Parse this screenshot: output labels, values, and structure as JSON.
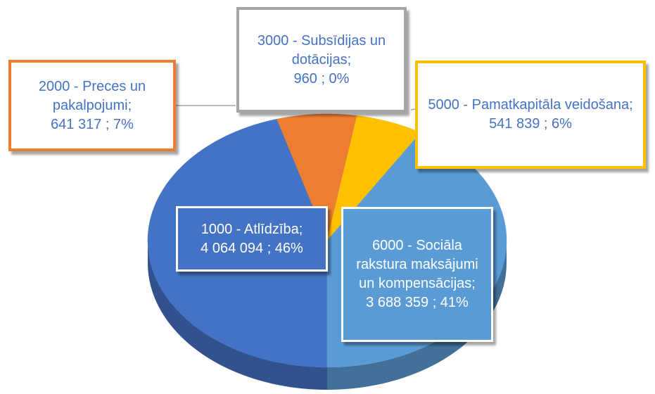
{
  "chart_data": {
    "type": "pie",
    "categories": [
      "1000 - Atlīdzība;",
      "2000 - Preces un pakalpojumi;",
      "3000 - Subsīdijas un dotācijas;",
      "5000 - Pamatkapitāla veidošana;",
      "6000 - Sociāla rakstura maksājumi un kompensācijas;"
    ],
    "values": [
      4064094,
      641317,
      960,
      541839,
      3688359
    ],
    "value_labels": [
      "4 064 094 ; 46%",
      "641 317 ; 7%",
      "960 ; 0%",
      "541 839 ; 6%",
      "3 688 359 ; 41%"
    ],
    "colors": [
      "#4472c4",
      "#ed7d31",
      "#a5a5a5",
      "#ffc000",
      "#5b9bd5"
    ]
  }
}
